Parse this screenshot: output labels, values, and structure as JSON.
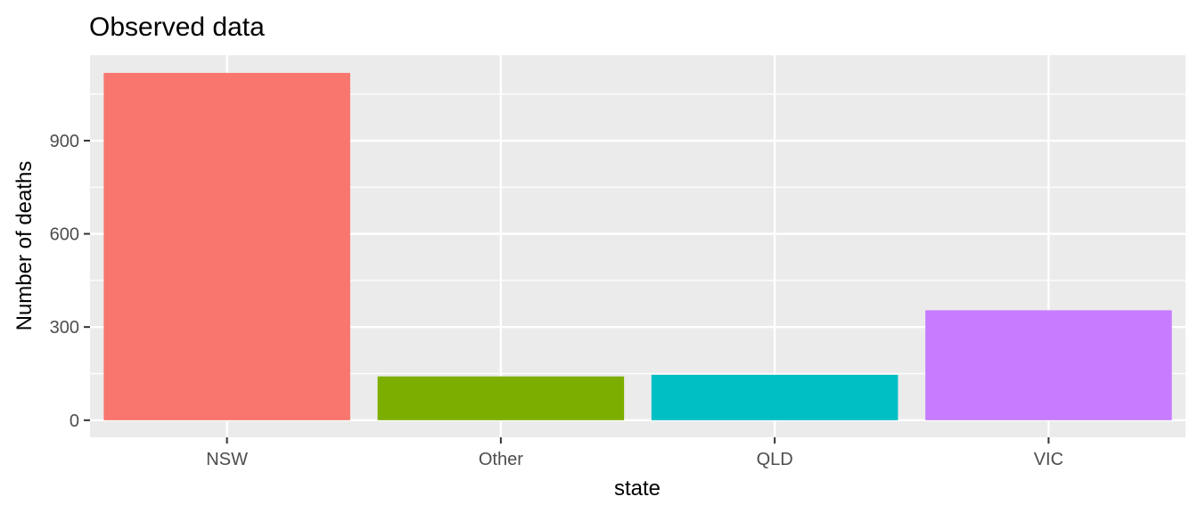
{
  "chart_data": {
    "type": "bar",
    "title": "Observed data",
    "xlabel": "state",
    "ylabel": "Number of deaths",
    "categories": [
      "NSW",
      "Other",
      "QLD",
      "VIC"
    ],
    "values": [
      1118,
      141,
      146,
      354
    ],
    "ylim": [
      -55,
      1175
    ],
    "yticks": [
      0,
      300,
      600,
      900
    ],
    "ytick_labels": [
      "0",
      "300",
      "600",
      "900"
    ],
    "colors": [
      "#F8766D",
      "#7CAE00",
      "#00BFC4",
      "#C77CFF"
    ],
    "panel_background": "#EBEBEB",
    "grid": true,
    "legend": "none"
  }
}
